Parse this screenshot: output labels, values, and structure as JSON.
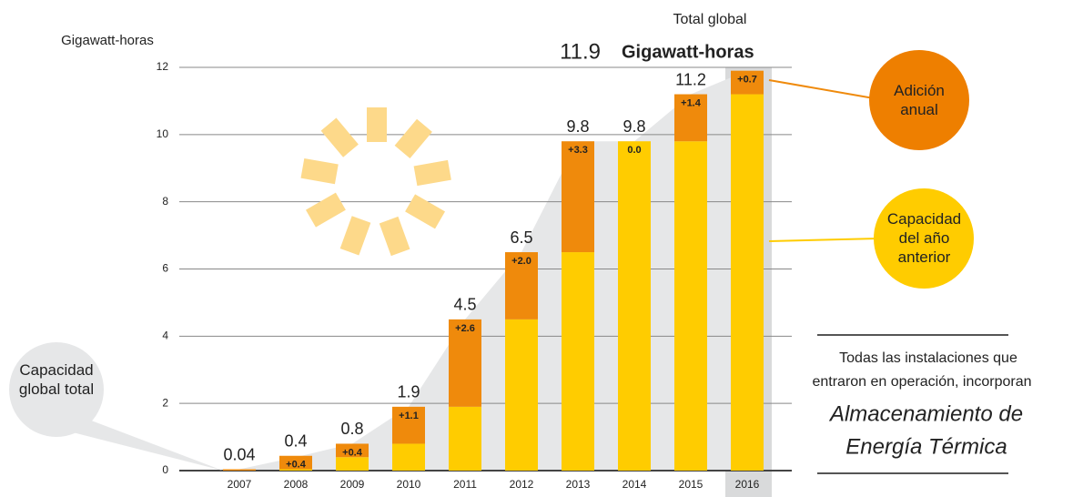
{
  "chart_data": {
    "type": "bar",
    "stacked": true,
    "title": "Total global",
    "unit": "Gigawatt-horas",
    "y_label": "Gigawatt-horas",
    "categories": [
      "2007",
      "2008",
      "2009",
      "2010",
      "2011",
      "2012",
      "2013",
      "2014",
      "2015",
      "2016"
    ],
    "series": [
      {
        "name": "Capacidad del año anterior",
        "color": "#ffcc00",
        "values": [
          0,
          0.04,
          0.4,
          0.8,
          1.9,
          4.5,
          6.5,
          9.8,
          9.8,
          11.2
        ]
      },
      {
        "name": "Adición anual",
        "color": "#ef8a0c",
        "values": [
          0.04,
          0.4,
          0.4,
          1.1,
          2.6,
          2.0,
          3.3,
          0.0,
          1.4,
          0.7
        ],
        "value_labels": [
          null,
          "+0.4",
          "+0.4",
          "+1.1",
          "+2.6",
          "+2.0",
          "+3.3",
          "0.0",
          "+1.4",
          "+0.7"
        ]
      }
    ],
    "totals": [
      0.04,
      0.4,
      0.8,
      1.9,
      4.5,
      6.5,
      9.8,
      9.8,
      11.2,
      11.9
    ],
    "ylim": [
      0,
      12
    ],
    "yticks": [
      0,
      2,
      4,
      6,
      8,
      10,
      12
    ],
    "grid": true,
    "annotations": {
      "total_bubble": "Capacidad global total",
      "note": [
        "Todas las instalaciones que",
        "entraron en operación, incorporan"
      ],
      "emphasis": [
        "Almacenamiento de",
        "Energía Térmica"
      ]
    }
  }
}
